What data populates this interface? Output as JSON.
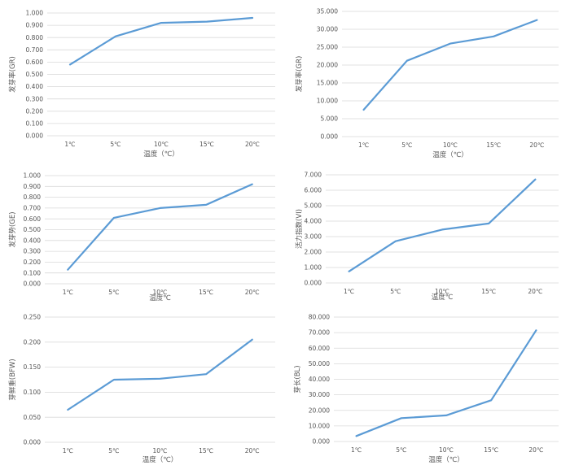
{
  "line_color": "#5b9bd5",
  "chart_data": [
    {
      "type": "line",
      "categories": [
        "1℃",
        "5℃",
        "10℃",
        "15℃",
        "20℃"
      ],
      "series": [
        {
          "values": [
            0.58,
            0.81,
            0.92,
            0.93,
            0.96
          ]
        }
      ],
      "ylim": [
        0,
        1.0
      ],
      "yticks": [
        "0.000",
        "0.100",
        "0.200",
        "0.300",
        "0.400",
        "0.500",
        "0.600",
        "0.700",
        "0.800",
        "0.900",
        "1.000"
      ],
      "xlabel": "温度（℃）",
      "ylabel": "发芽率(GR)",
      "grid": true
    },
    {
      "type": "line",
      "categories": [
        "1℃",
        "5℃",
        "10℃",
        "15℃",
        "20℃"
      ],
      "series": [
        {
          "values": [
            7.5,
            21.2,
            26.0,
            28.0,
            32.6
          ]
        }
      ],
      "ylim": [
        0,
        35
      ],
      "yticks": [
        "0.000",
        "5.000",
        "10.000",
        "15.000",
        "20.000",
        "25.000",
        "30.000",
        "35.000"
      ],
      "xlabel": "温度（℃）",
      "ylabel": "发芽率(GR)",
      "grid": true
    },
    {
      "type": "line",
      "categories": [
        "1℃",
        "5℃",
        "10℃",
        "15℃",
        "20℃"
      ],
      "series": [
        {
          "values": [
            0.13,
            0.61,
            0.7,
            0.73,
            0.92
          ]
        }
      ],
      "ylim": [
        0,
        1.0
      ],
      "yticks": [
        "0.000",
        "0.100",
        "0.200",
        "0.300",
        "0.400",
        "0.500",
        "0.600",
        "0.700",
        "0.800",
        "0.900",
        "1.000"
      ],
      "xlabel": "温度℃",
      "ylabel": "发芽势(GE)",
      "grid": true
    },
    {
      "type": "line",
      "categories": [
        "1℃",
        "5℃",
        "10℃",
        "15℃",
        "20℃"
      ],
      "series": [
        {
          "values": [
            0.75,
            2.7,
            3.45,
            3.85,
            6.7
          ]
        }
      ],
      "ylim": [
        0,
        7
      ],
      "yticks": [
        "0.000",
        "1.000",
        "2.000",
        "3.000",
        "4.000",
        "5.000",
        "6.000",
        "7.000"
      ],
      "xlabel": "温度℃",
      "ylabel": "活力指数(VI)",
      "grid": true
    },
    {
      "type": "line",
      "categories": [
        "1℃",
        "5℃",
        "10℃",
        "15℃",
        "20℃"
      ],
      "series": [
        {
          "values": [
            0.065,
            0.125,
            0.127,
            0.136,
            0.205
          ]
        }
      ],
      "ylim": [
        0,
        0.25
      ],
      "yticks": [
        "0.000",
        "0.050",
        "0.100",
        "0.150",
        "0.200",
        "0.250"
      ],
      "xlabel": "温度（℃）",
      "ylabel": "芽鲜重(BFW)",
      "grid": true
    },
    {
      "type": "line",
      "categories": [
        "1℃",
        "5℃",
        "10℃",
        "15℃",
        "20℃"
      ],
      "series": [
        {
          "values": [
            3.5,
            15.0,
            16.8,
            26.5,
            71.5
          ]
        }
      ],
      "ylim": [
        0,
        80
      ],
      "yticks": [
        "0.000",
        "10.000",
        "20.000",
        "30.000",
        "40.000",
        "50.000",
        "60.000",
        "70.000",
        "80.000"
      ],
      "xlabel": "温度（℃）",
      "ylabel": "芽长(BL)",
      "grid": true
    }
  ]
}
